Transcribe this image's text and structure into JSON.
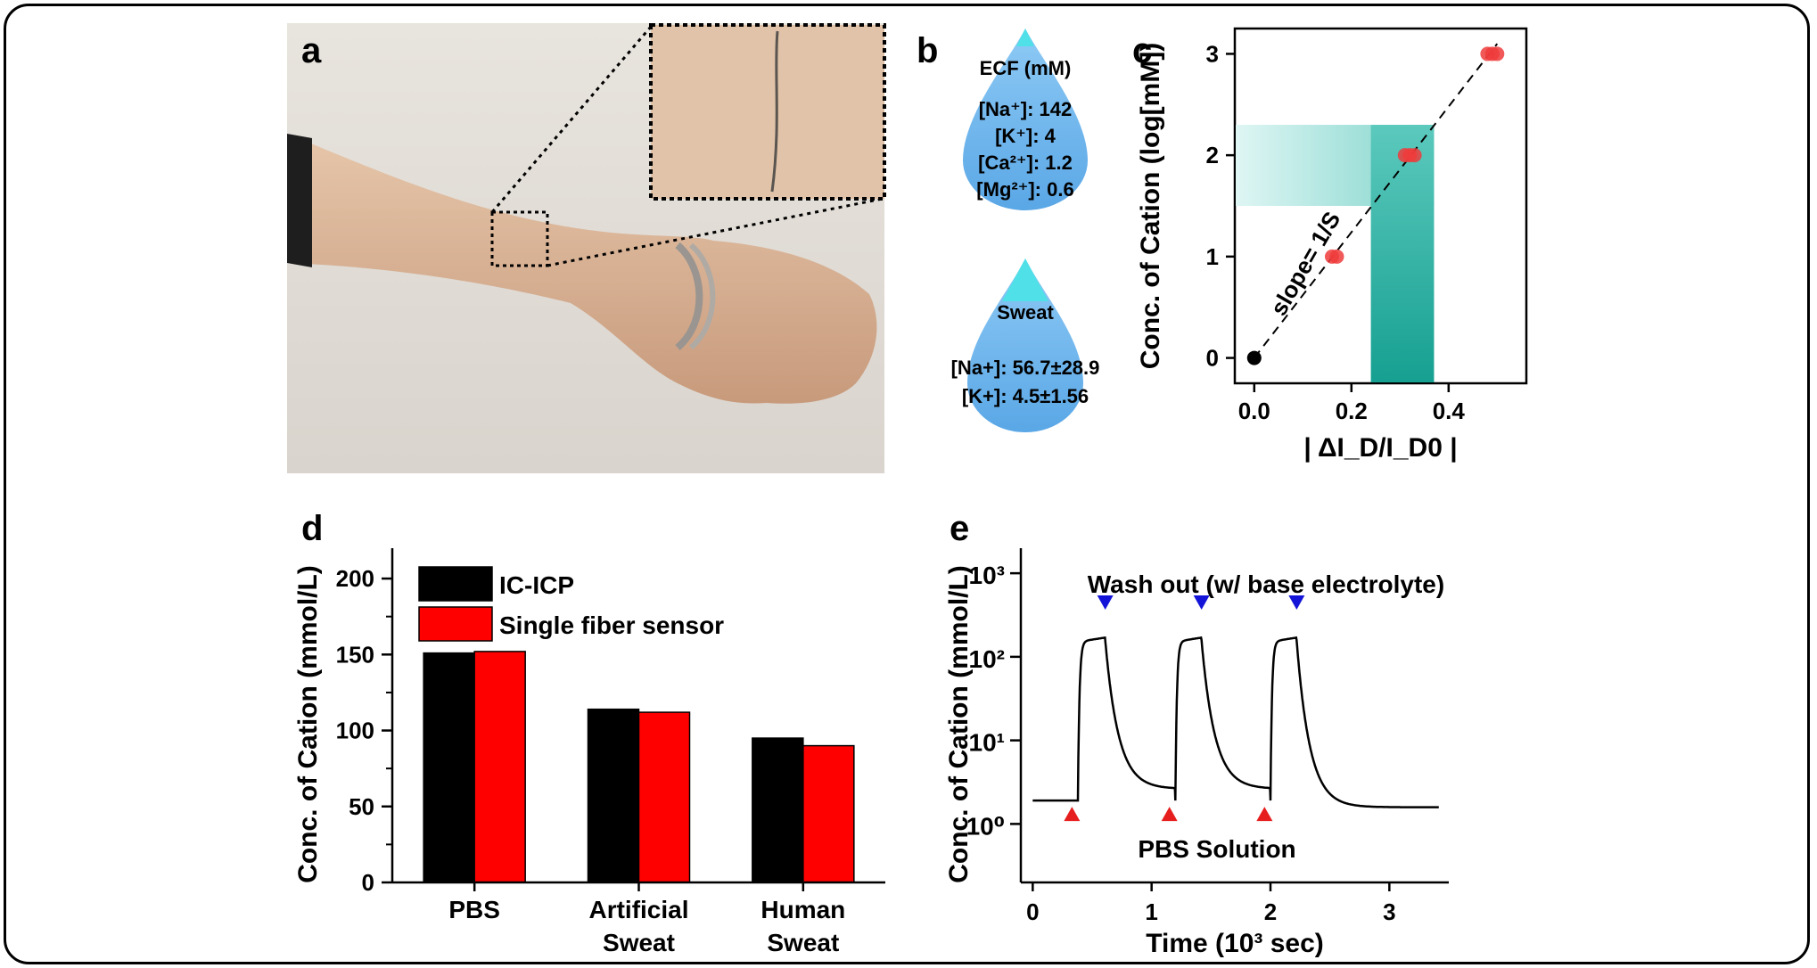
{
  "panels": {
    "a": "a",
    "b": "b",
    "c": "c",
    "d": "d",
    "e": "e"
  },
  "panel_b": {
    "ecf": {
      "title": "ECF (mM)",
      "lines": [
        "[Na⁺]: 142",
        "[K⁺]: 4",
        "[Ca²⁺]: 1.2",
        "[Mg²⁺]: 0.6"
      ]
    },
    "sweat": {
      "title": "Sweat",
      "lines": [
        "[Na+]: 56.7±28.9",
        "[K+]: 4.5±1.56"
      ]
    },
    "colors": {
      "drop": "#69b3ec",
      "tip": "#4fe0e8"
    }
  },
  "chart_data": [
    {
      "id": "c",
      "type": "scatter",
      "xlabel": "| ΔI_D/I_D0 |",
      "ylabel": "Conc. of Cation (log[mM])",
      "xlim": [
        -0.04,
        0.56
      ],
      "ylim": [
        -0.25,
        3.25
      ],
      "xticks": [
        "0.0",
        "0.2",
        "0.4"
      ],
      "yticks": [
        "0",
        "1",
        "2",
        "3"
      ],
      "points_red": [
        [
          0.16,
          1.0
        ],
        [
          0.17,
          1.0
        ],
        [
          0.31,
          2.0
        ],
        [
          0.32,
          2.0
        ],
        [
          0.33,
          2.0
        ],
        [
          0.48,
          3.0
        ],
        [
          0.49,
          3.0
        ],
        [
          0.5,
          3.0
        ]
      ],
      "points_black": [
        [
          0.0,
          0.0
        ]
      ],
      "fit_line": [
        [
          0.0,
          0.0
        ],
        [
          0.5,
          3.1
        ]
      ],
      "annotation": "slope= 1/S",
      "band": {
        "x_range": [
          0.24,
          0.37
        ],
        "y_range": [
          1.5,
          2.3
        ]
      },
      "colors": {
        "red": "#ef3b3b",
        "black": "#000000",
        "band": "#1aa89a"
      }
    },
    {
      "id": "d",
      "type": "bar",
      "ylabel": "Conc. of Cation (mmol/L)",
      "ylim": [
        0,
        220
      ],
      "yticks": [
        "0",
        "50",
        "100",
        "150",
        "200"
      ],
      "categories": [
        [
          "PBS"
        ],
        [
          "Artificial",
          "Sweat"
        ],
        [
          "Human",
          "Sweat"
        ]
      ],
      "series": [
        {
          "name": "IC-ICP",
          "values": [
            151,
            114,
            95
          ],
          "color": "#000000"
        },
        {
          "name": "Single fiber sensor",
          "values": [
            152,
            112,
            90
          ],
          "color": "#ff0000"
        }
      ]
    },
    {
      "id": "e",
      "type": "line",
      "xlabel": "Time (10³ sec)",
      "ylabel": "Conc. of Cation (mmol/L)",
      "xlim": [
        -0.1,
        3.5
      ],
      "ylim_log": [
        -0.7,
        3.3
      ],
      "xticks": [
        "0",
        "1",
        "2",
        "3"
      ],
      "yticks": [
        "10⁰",
        "10¹",
        "10²",
        "10³"
      ],
      "cycles": [
        {
          "on": 0.38,
          "off": 0.61
        },
        {
          "on": 1.2,
          "off": 1.42
        },
        {
          "on": 2.0,
          "off": 2.22
        }
      ],
      "annotation_top": "Wash out (w/ base electrolyte)",
      "annotation_bottom": "PBS Solution",
      "colors": {
        "blue": "#1414d8",
        "red": "#e61e1e"
      }
    }
  ]
}
